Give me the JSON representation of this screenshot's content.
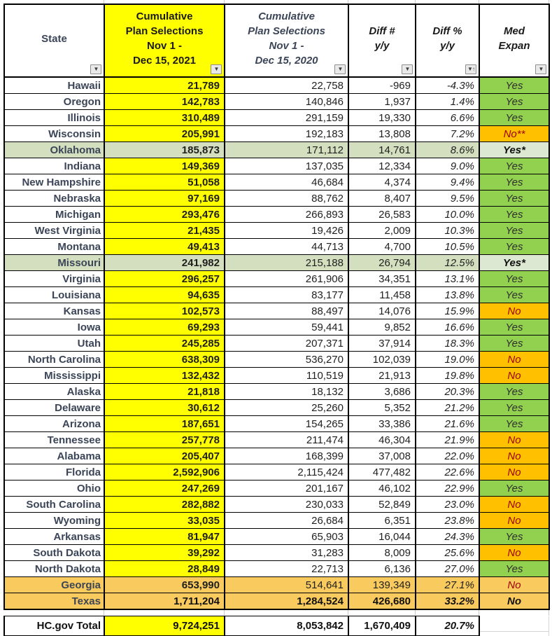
{
  "colors": {
    "highlight_yellow": "#FFFF00",
    "med_yes_green": "#92D050",
    "med_no_orange": "#FFC000",
    "row_highlight_green": "#D3DFBE",
    "row_highlight_gold": "#F9CA5D",
    "no_text_red": "#9C0006",
    "state_text": "#3B4557"
  },
  "table": {
    "headers": [
      {
        "label": "State",
        "icon": "filter-icon"
      },
      {
        "label": "Cumulative\nPlan Selections\nNov 1 -\nDec 15, 2021",
        "icon": "filter-icon"
      },
      {
        "label": "Cumulative\nPlan Selections\nNov 1 -\nDec 15, 2020",
        "icon": "filter-icon"
      },
      {
        "label": "Diff #\ny/y",
        "icon": "filter-icon"
      },
      {
        "label": "Diff %\ny/y",
        "icon": "filter-sort-asc-icon"
      },
      {
        "label": "Med\nExpan",
        "icon": "filter-icon"
      }
    ],
    "rows": [
      {
        "state": "Hawaii",
        "v2021": "21,789",
        "v2020": "22,758",
        "diff": "-969",
        "pct": "-4.3%",
        "med": "Yes",
        "hl": "none",
        "bold": false,
        "med_bold": false
      },
      {
        "state": "Oregon",
        "v2021": "142,783",
        "v2020": "140,846",
        "diff": "1,937",
        "pct": "1.4%",
        "med": "Yes",
        "hl": "none",
        "bold": false,
        "med_bold": false
      },
      {
        "state": "Illinois",
        "v2021": "310,489",
        "v2020": "291,159",
        "diff": "19,330",
        "pct": "6.6%",
        "med": "Yes",
        "hl": "none",
        "bold": false,
        "med_bold": false
      },
      {
        "state": "Wisconsin",
        "v2021": "205,991",
        "v2020": "192,183",
        "diff": "13,808",
        "pct": "7.2%",
        "med": "No**",
        "hl": "none",
        "bold": false,
        "med_bold": false
      },
      {
        "state": "Oklahoma",
        "v2021": "185,873",
        "v2020": "171,112",
        "diff": "14,761",
        "pct": "8.6%",
        "med": "Yes*",
        "hl": "green",
        "bold": false,
        "med_bold": true
      },
      {
        "state": "Indiana",
        "v2021": "149,369",
        "v2020": "137,035",
        "diff": "12,334",
        "pct": "9.0%",
        "med": "Yes",
        "hl": "none",
        "bold": false,
        "med_bold": false
      },
      {
        "state": "New Hampshire",
        "v2021": "51,058",
        "v2020": "46,684",
        "diff": "4,374",
        "pct": "9.4%",
        "med": "Yes",
        "hl": "none",
        "bold": false,
        "med_bold": false
      },
      {
        "state": "Nebraska",
        "v2021": "97,169",
        "v2020": "88,762",
        "diff": "8,407",
        "pct": "9.5%",
        "med": "Yes",
        "hl": "none",
        "bold": false,
        "med_bold": false
      },
      {
        "state": "Michigan",
        "v2021": "293,476",
        "v2020": "266,893",
        "diff": "26,583",
        "pct": "10.0%",
        "med": "Yes",
        "hl": "none",
        "bold": false,
        "med_bold": false
      },
      {
        "state": "West Virginia",
        "v2021": "21,435",
        "v2020": "19,426",
        "diff": "2,009",
        "pct": "10.3%",
        "med": "Yes",
        "hl": "none",
        "bold": false,
        "med_bold": false
      },
      {
        "state": "Montana",
        "v2021": "49,413",
        "v2020": "44,713",
        "diff": "4,700",
        "pct": "10.5%",
        "med": "Yes",
        "hl": "none",
        "bold": false,
        "med_bold": false
      },
      {
        "state": "Missouri",
        "v2021": "241,982",
        "v2020": "215,188",
        "diff": "26,794",
        "pct": "12.5%",
        "med": "Yes*",
        "hl": "green",
        "bold": false,
        "med_bold": true
      },
      {
        "state": "Virginia",
        "v2021": "296,257",
        "v2020": "261,906",
        "diff": "34,351",
        "pct": "13.1%",
        "med": "Yes",
        "hl": "none",
        "bold": false,
        "med_bold": false
      },
      {
        "state": "Louisiana",
        "v2021": "94,635",
        "v2020": "83,177",
        "diff": "11,458",
        "pct": "13.8%",
        "med": "Yes",
        "hl": "none",
        "bold": false,
        "med_bold": false
      },
      {
        "state": "Kansas",
        "v2021": "102,573",
        "v2020": "88,497",
        "diff": "14,076",
        "pct": "15.9%",
        "med": "No",
        "hl": "none",
        "bold": false,
        "med_bold": false
      },
      {
        "state": "Iowa",
        "v2021": "69,293",
        "v2020": "59,441",
        "diff": "9,852",
        "pct": "16.6%",
        "med": "Yes",
        "hl": "none",
        "bold": false,
        "med_bold": false
      },
      {
        "state": "Utah",
        "v2021": "245,285",
        "v2020": "207,371",
        "diff": "37,914",
        "pct": "18.3%",
        "med": "Yes",
        "hl": "none",
        "bold": false,
        "med_bold": false
      },
      {
        "state": "North Carolina",
        "v2021": "638,309",
        "v2020": "536,270",
        "diff": "102,039",
        "pct": "19.0%",
        "med": "No",
        "hl": "none",
        "bold": false,
        "med_bold": false
      },
      {
        "state": "Mississippi",
        "v2021": "132,432",
        "v2020": "110,519",
        "diff": "21,913",
        "pct": "19.8%",
        "med": "No",
        "hl": "none",
        "bold": false,
        "med_bold": false
      },
      {
        "state": "Alaska",
        "v2021": "21,818",
        "v2020": "18,132",
        "diff": "3,686",
        "pct": "20.3%",
        "med": "Yes",
        "hl": "none",
        "bold": false,
        "med_bold": false
      },
      {
        "state": "Delaware",
        "v2021": "30,612",
        "v2020": "25,260",
        "diff": "5,352",
        "pct": "21.2%",
        "med": "Yes",
        "hl": "none",
        "bold": false,
        "med_bold": false
      },
      {
        "state": "Arizona",
        "v2021": "187,651",
        "v2020": "154,265",
        "diff": "33,386",
        "pct": "21.6%",
        "med": "Yes",
        "hl": "none",
        "bold": false,
        "med_bold": false
      },
      {
        "state": "Tennessee",
        "v2021": "257,778",
        "v2020": "211,474",
        "diff": "46,304",
        "pct": "21.9%",
        "med": "No",
        "hl": "none",
        "bold": false,
        "med_bold": false
      },
      {
        "state": "Alabama",
        "v2021": "205,407",
        "v2020": "168,399",
        "diff": "37,008",
        "pct": "22.0%",
        "med": "No",
        "hl": "none",
        "bold": false,
        "med_bold": false
      },
      {
        "state": "Florida",
        "v2021": "2,592,906",
        "v2020": "2,115,424",
        "diff": "477,482",
        "pct": "22.6%",
        "med": "No",
        "hl": "none",
        "bold": false,
        "med_bold": false
      },
      {
        "state": "Ohio",
        "v2021": "247,269",
        "v2020": "201,167",
        "diff": "46,102",
        "pct": "22.9%",
        "med": "Yes",
        "hl": "none",
        "bold": false,
        "med_bold": false
      },
      {
        "state": "South Carolina",
        "v2021": "282,882",
        "v2020": "230,033",
        "diff": "52,849",
        "pct": "23.0%",
        "med": "No",
        "hl": "none",
        "bold": false,
        "med_bold": false
      },
      {
        "state": "Wyoming",
        "v2021": "33,035",
        "v2020": "26,684",
        "diff": "6,351",
        "pct": "23.8%",
        "med": "No",
        "hl": "none",
        "bold": false,
        "med_bold": false
      },
      {
        "state": "Arkansas",
        "v2021": "81,947",
        "v2020": "65,903",
        "diff": "16,044",
        "pct": "24.3%",
        "med": "Yes",
        "hl": "none",
        "bold": false,
        "med_bold": false
      },
      {
        "state": "South Dakota",
        "v2021": "39,292",
        "v2020": "31,283",
        "diff": "8,009",
        "pct": "25.6%",
        "med": "No",
        "hl": "none",
        "bold": false,
        "med_bold": false
      },
      {
        "state": "North Dakota",
        "v2021": "28,849",
        "v2020": "22,713",
        "diff": "6,136",
        "pct": "27.0%",
        "med": "Yes",
        "hl": "none",
        "bold": false,
        "med_bold": false
      },
      {
        "state": "Georgia",
        "v2021": "653,990",
        "v2020": "514,641",
        "diff": "139,349",
        "pct": "27.1%",
        "med": "No",
        "hl": "gold",
        "bold": false,
        "med_bold": false
      },
      {
        "state": "Texas",
        "v2021": "1,711,204",
        "v2020": "1,284,524",
        "diff": "426,680",
        "pct": "33.2%",
        "med": "No",
        "hl": "gold",
        "bold": true,
        "med_bold": true
      }
    ],
    "total": {
      "label": "HC.gov Total",
      "v2021": "9,724,251",
      "v2020": "8,053,842",
      "diff": "1,670,409",
      "pct": "20.7%",
      "med": ""
    }
  }
}
